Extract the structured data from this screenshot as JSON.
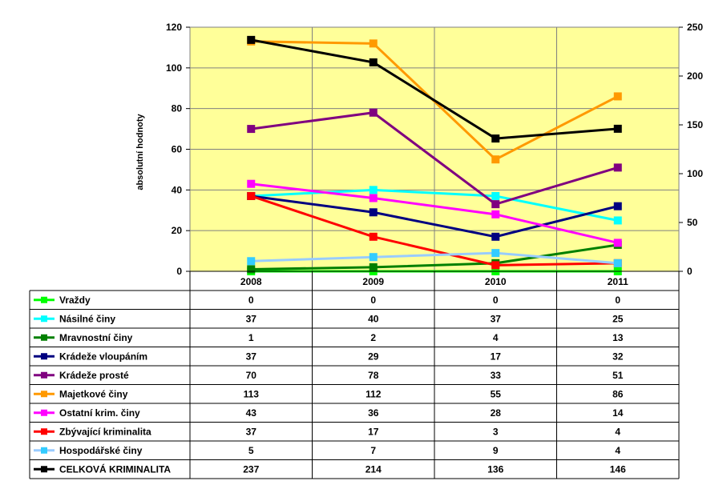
{
  "chart_data": {
    "type": "line",
    "title": "",
    "xlabel": "",
    "ylabel": "absolutní hodnoty",
    "ylim": [
      0,
      120
    ],
    "y_ticks": [
      0,
      20,
      40,
      60,
      80,
      100,
      120
    ],
    "y2lim": [
      0,
      250
    ],
    "y2_ticks": [
      0,
      50,
      100,
      150,
      200,
      250
    ],
    "grid": true,
    "background_color": "#ffff99",
    "categories": [
      "2008",
      "2009",
      "2010",
      "2011"
    ],
    "series": [
      {
        "name": "Vraždy",
        "values": [
          0,
          0,
          0,
          0
        ],
        "color": "#00ff00",
        "axis": "left"
      },
      {
        "name": "Násilné činy",
        "values": [
          37,
          40,
          37,
          25
        ],
        "color": "#00ffff",
        "axis": "left"
      },
      {
        "name": "Mravnostní činy",
        "values": [
          1,
          2,
          4,
          13
        ],
        "color": "#008000",
        "axis": "left"
      },
      {
        "name": "Krádeže vloupáním",
        "values": [
          37,
          29,
          17,
          32
        ],
        "color": "#000080",
        "axis": "left"
      },
      {
        "name": "Krádeže prosté",
        "values": [
          70,
          78,
          33,
          51
        ],
        "color": "#800080",
        "axis": "left"
      },
      {
        "name": "Majetkové činy",
        "values": [
          113,
          112,
          55,
          86
        ],
        "color": "#ff9900",
        "axis": "left"
      },
      {
        "name": "Ostatní krim. činy",
        "values": [
          43,
          36,
          28,
          14
        ],
        "color": "#ff00ff",
        "axis": "left"
      },
      {
        "name": "Zbývající kriminalita",
        "values": [
          37,
          17,
          3,
          4
        ],
        "color": "#ff0000",
        "axis": "left"
      },
      {
        "name": "Hospodářské činy",
        "values": [
          5,
          7,
          9,
          4
        ],
        "color": "#99ccff",
        "marker_color": "#33ccff",
        "axis": "left"
      },
      {
        "name": "CELKOVÁ KRIMINALITA",
        "values": [
          237,
          214,
          136,
          146
        ],
        "color": "#000000",
        "axis": "right"
      }
    ],
    "legend": "data-table-below"
  }
}
